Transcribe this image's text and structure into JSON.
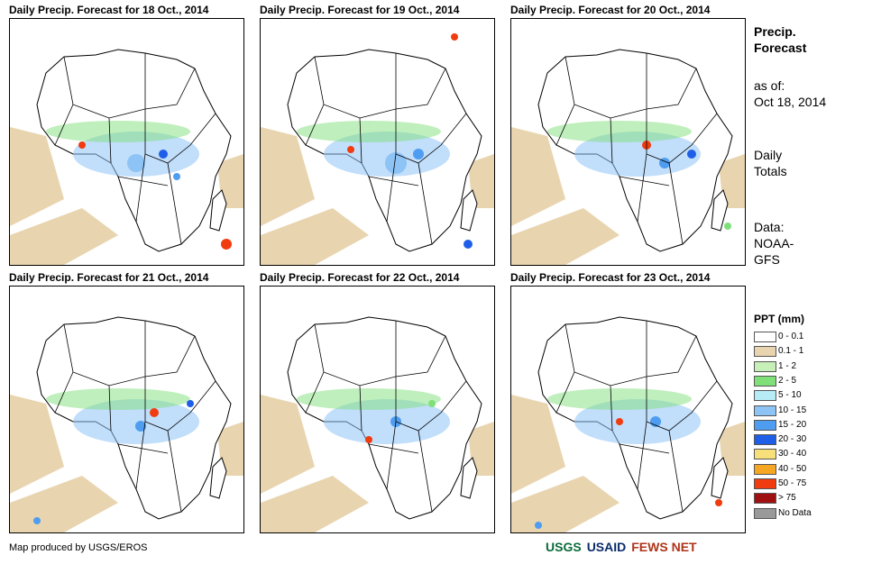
{
  "panels": [
    {
      "title": "Daily Precip. Forecast for 18 Oct., 2014"
    },
    {
      "title": "Daily Precip. Forecast for 19 Oct., 2014"
    },
    {
      "title": "Daily Precip. Forecast for 20 Oct., 2014"
    },
    {
      "title": "Daily Precip. Forecast for 21 Oct., 2014"
    },
    {
      "title": "Daily Precip. Forecast for 22 Oct., 2014"
    },
    {
      "title": "Daily Precip. Forecast for 23 Oct., 2014"
    }
  ],
  "side": {
    "heading_line1": "Precip.",
    "heading_line2": "Forecast",
    "asof_line1": "as of:",
    "asof_line2": "Oct 18, 2014",
    "daily_line1": "Daily",
    "daily_line2": "Totals",
    "data_line1": "Data:",
    "data_line2": "NOAA-",
    "data_line3": "GFS"
  },
  "legend": {
    "title": "PPT (mm)",
    "items": [
      {
        "label": "0 - 0.1",
        "color": "#ffffff"
      },
      {
        "label": "0.1 - 1",
        "color": "#e8d5b0"
      },
      {
        "label": "1 - 2",
        "color": "#c7f0b8"
      },
      {
        "label": "2 - 5",
        "color": "#7fe07a"
      },
      {
        "label": "5 - 10",
        "color": "#b7ecf7"
      },
      {
        "label": "10 - 15",
        "color": "#8ec3f5"
      },
      {
        "label": "15 - 20",
        "color": "#4f9df0"
      },
      {
        "label": "20 - 30",
        "color": "#1f5fe8"
      },
      {
        "label": "30 - 40",
        "color": "#f7e07a"
      },
      {
        "label": "40 - 50",
        "color": "#f5a623"
      },
      {
        "label": "50 - 75",
        "color": "#f03c0f"
      },
      {
        "label": "> 75",
        "color": "#a01010"
      },
      {
        "label": "No Data",
        "color": "#999999"
      }
    ]
  },
  "footer": {
    "credit": "Map produced by USGS/EROS"
  },
  "logos": {
    "usgs": "USGS",
    "usaid": "USAID",
    "fewsnet": "FEWS NET"
  }
}
